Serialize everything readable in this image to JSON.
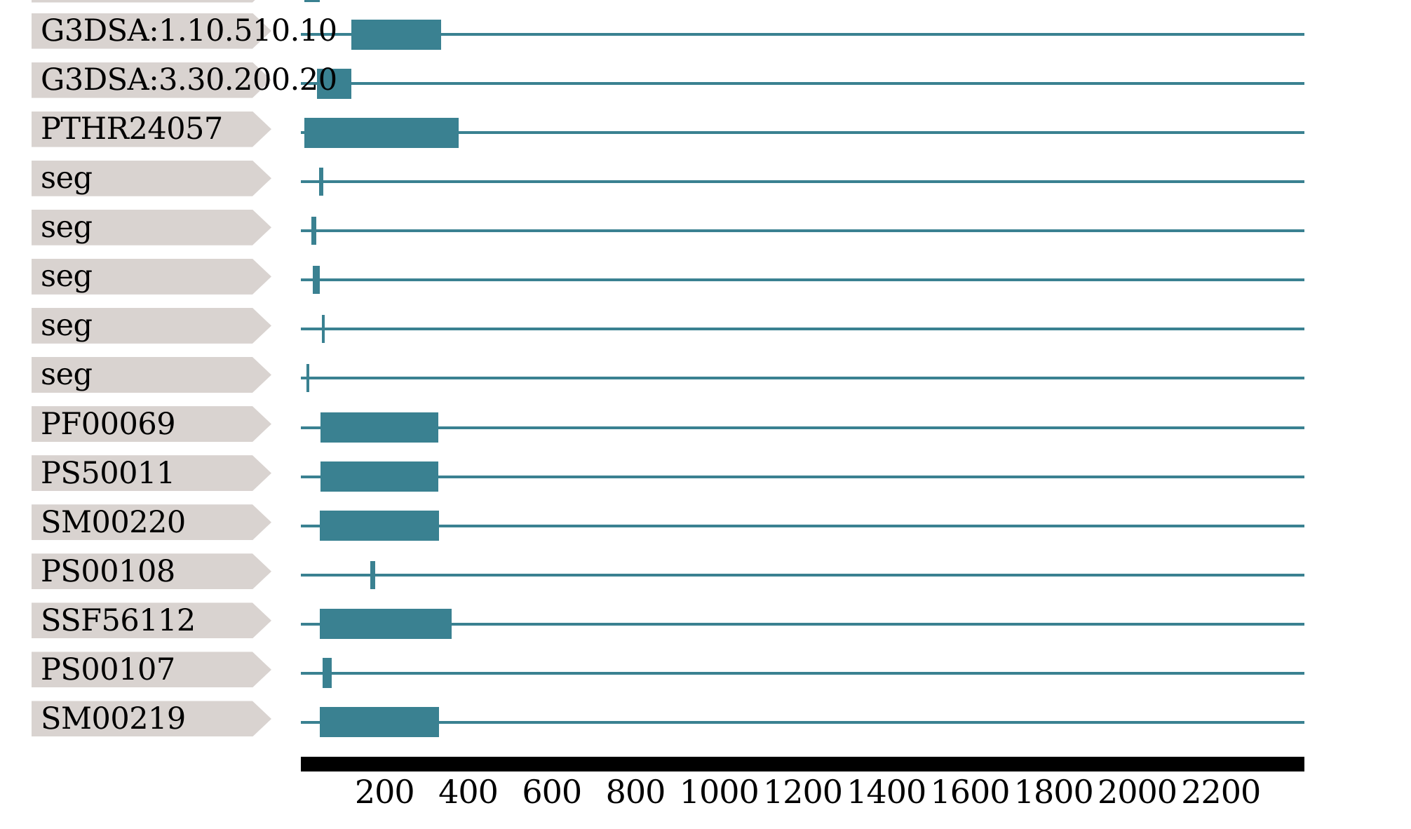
{
  "chart_data": {
    "type": "bar",
    "subtype": "protein-domain-architecture-tracks",
    "orientation": "horizontal",
    "sequence_length": 2400,
    "axis": {
      "min": 0,
      "max": 2400,
      "tick_values": [
        200,
        400,
        600,
        800,
        1000,
        1200,
        1400,
        1600,
        1800,
        2000,
        2200
      ],
      "grid": false,
      "style": "solid-black-scale-bar-below-tracks"
    },
    "rows": [
      {
        "label": "",
        "match_type": "tick",
        "start": 8,
        "end": 45,
        "clipped_top": true
      },
      {
        "label": "G3DSA:1.10.510.10",
        "match_type": "box",
        "start": 121,
        "end": 335,
        "clipped_top": false
      },
      {
        "label": "G3DSA:3.30.200.20",
        "match_type": "box",
        "start": 39,
        "end": 121,
        "clipped_top": false
      },
      {
        "label": "PTHR24057",
        "match_type": "box",
        "start": 8,
        "end": 377,
        "clipped_top": false
      },
      {
        "label": "seg",
        "match_type": "tick",
        "start": 44,
        "end": 54,
        "clipped_top": false
      },
      {
        "label": "seg",
        "match_type": "tick",
        "start": 25,
        "end": 37,
        "clipped_top": false
      },
      {
        "label": "seg",
        "match_type": "tick",
        "start": 29,
        "end": 45,
        "clipped_top": false
      },
      {
        "label": "seg",
        "match_type": "tick",
        "start": 50,
        "end": 57,
        "clipped_top": false
      },
      {
        "label": "seg",
        "match_type": "tick",
        "start": 13,
        "end": 20,
        "clipped_top": false
      },
      {
        "label": "PF00069",
        "match_type": "box",
        "start": 47,
        "end": 329,
        "clipped_top": false
      },
      {
        "label": "PS50011",
        "match_type": "box",
        "start": 47,
        "end": 329,
        "clipped_top": false
      },
      {
        "label": "SM00220",
        "match_type": "box",
        "start": 45,
        "end": 330,
        "clipped_top": false
      },
      {
        "label": "PS00108",
        "match_type": "tick",
        "start": 166,
        "end": 178,
        "clipped_top": false
      },
      {
        "label": "SSF56112",
        "match_type": "box",
        "start": 45,
        "end": 360,
        "clipped_top": false
      },
      {
        "label": "PS00107",
        "match_type": "box",
        "start": 52,
        "end": 74,
        "clipped_top": false
      },
      {
        "label": "SM00219",
        "match_type": "box",
        "start": 45,
        "end": 330,
        "clipped_top": false
      }
    ],
    "colors": {
      "match": "#3a8191",
      "track_line": "#3a8191",
      "label_arrow": "#d9d3d0",
      "label_text": "#000000",
      "axis_bar": "#000000",
      "background": "#ffffff"
    }
  }
}
